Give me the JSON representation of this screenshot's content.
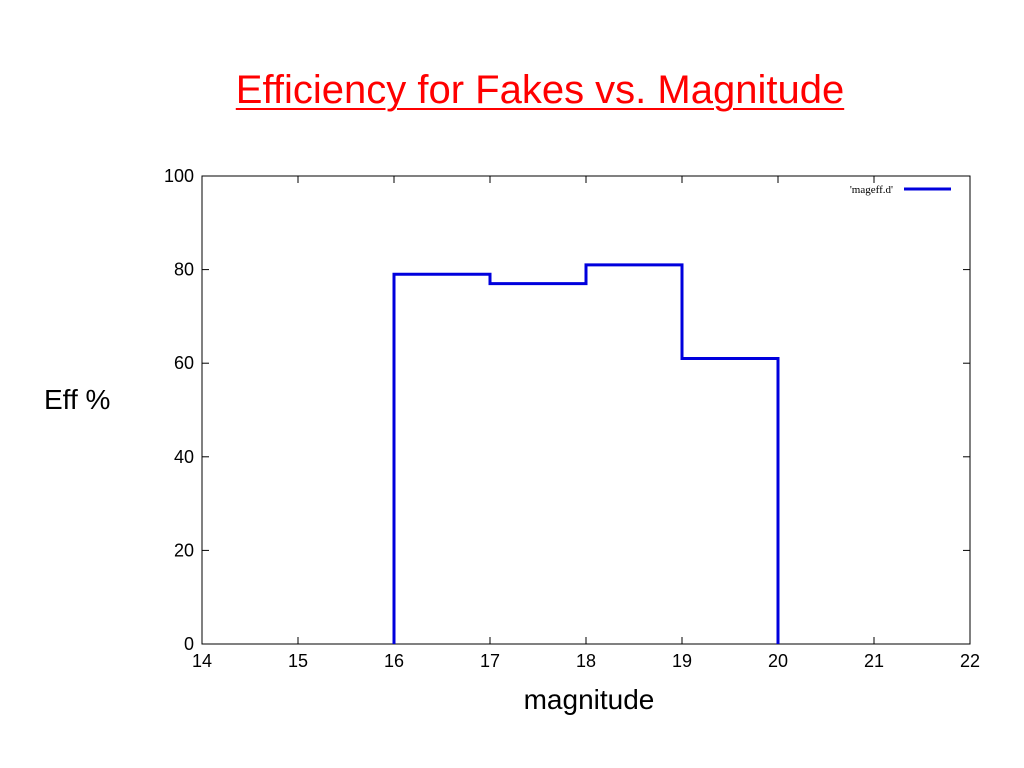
{
  "slide": {
    "title": "Efficiency for Fakes vs. Magnitude"
  },
  "chart_data": {
    "type": "line",
    "style": "step",
    "title": "Efficiency for Fakes vs. Magnitude",
    "xlabel": "magnitude",
    "ylabel": "Eff %",
    "xlim": [
      14,
      22
    ],
    "ylim": [
      0,
      100
    ],
    "xticks": [
      14,
      15,
      16,
      17,
      18,
      19,
      20,
      21,
      22
    ],
    "yticks": [
      0,
      20,
      40,
      60,
      80,
      100
    ],
    "grid": false,
    "legend_position": "top-right",
    "series": [
      {
        "name": "'mageff.d'",
        "color": "#0000dd",
        "bins": [
          {
            "x0": 16,
            "x1": 17,
            "y": 79
          },
          {
            "x0": 17,
            "x1": 18,
            "y": 77
          },
          {
            "x0": 18,
            "x1": 19,
            "y": 81
          },
          {
            "x0": 19,
            "x1": 20,
            "y": 61
          }
        ]
      }
    ]
  }
}
